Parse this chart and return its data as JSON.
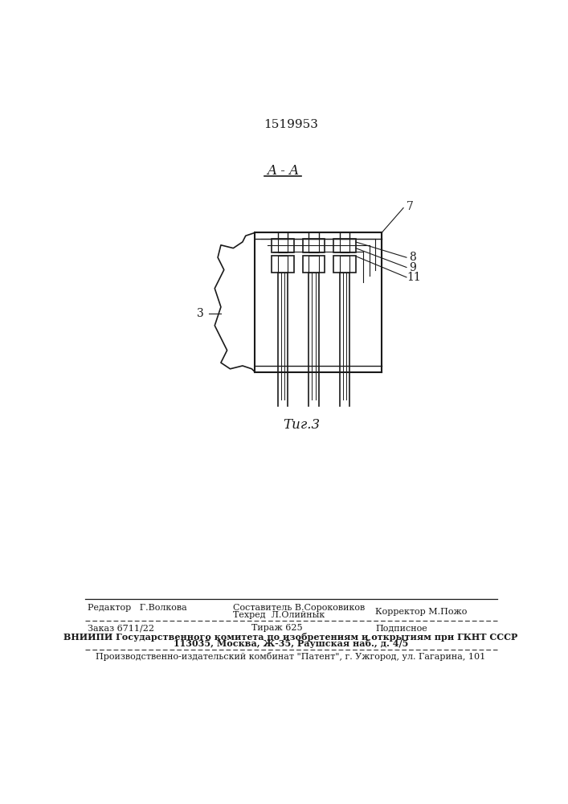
{
  "patent_number": "1519953",
  "section_label": "A - A",
  "fig_label": "Τиг.3",
  "bg_color": "#ffffff",
  "line_color": "#1a1a1a",
  "footer": {
    "editor": "Редактор   Г.Волкова",
    "composer": "Составитель В.Сороковиков",
    "techred": "Техред  Л.Олийнык",
    "corrector": "Корректор М.Пожо",
    "order": "Заказ 6711/22",
    "tirazh": "Тираж 625",
    "podpisnoe": "Подписное",
    "vnipi": "ВНИИПИ Государственного комитета по изобретениям и открытиям при ГКНТ СССР",
    "address": "113035, Москва, Ж-35, Раушская наб., д. 4/5",
    "kombinat": "Производственно-издательский комбинат \"Патент\", г. Ужгород, ул. Гагарина, 101"
  }
}
